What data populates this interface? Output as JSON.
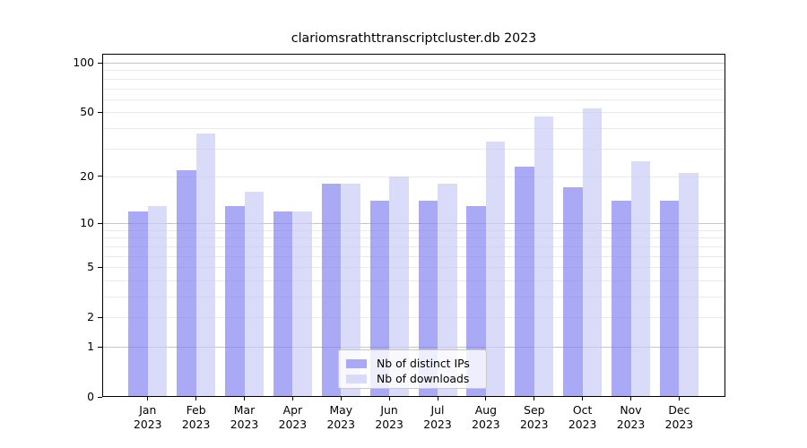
{
  "chart_data": {
    "type": "bar",
    "title": "clariomsrathttranscriptcluster.db 2023",
    "categories": [
      "Jan",
      "Feb",
      "Mar",
      "Apr",
      "May",
      "Jun",
      "Jul",
      "Aug",
      "Sep",
      "Oct",
      "Nov",
      "Dec"
    ],
    "category_year": "2023",
    "series": [
      {
        "name": "Nb of distinct IPs",
        "values": [
          12,
          22,
          13,
          12,
          18,
          14,
          14,
          13,
          23,
          17,
          14,
          14
        ],
        "color": "rgba(124,124,240,0.66)",
        "legend_color": "#a9a9f6"
      },
      {
        "name": "Nb of downloads",
        "values": [
          13,
          37,
          16,
          12,
          18,
          20,
          18,
          33,
          47,
          53,
          25,
          21
        ],
        "color": "rgba(202,202,246,0.70)",
        "legend_color": "#d9d9f8"
      }
    ],
    "yscale": "log1p",
    "ylim": [
      0,
      113
    ],
    "y_ticks_labeled": [
      100,
      50,
      20,
      10,
      5,
      2,
      1,
      0
    ],
    "y_grid_major": [
      1,
      10,
      100
    ],
    "y_grid_minor": [
      2,
      3,
      4,
      5,
      6,
      7,
      8,
      9,
      20,
      30,
      40,
      50,
      60,
      70,
      80,
      90
    ],
    "grid": true,
    "legend_position": "lower center",
    "xlabel": "",
    "ylabel": ""
  },
  "colors": {
    "background": "#ffffff",
    "grid_major": "#c6c6c6",
    "grid_minor": "#eaeaea",
    "spine": "#000000",
    "text": "#000000",
    "legend_border": "#c9c9c9"
  }
}
